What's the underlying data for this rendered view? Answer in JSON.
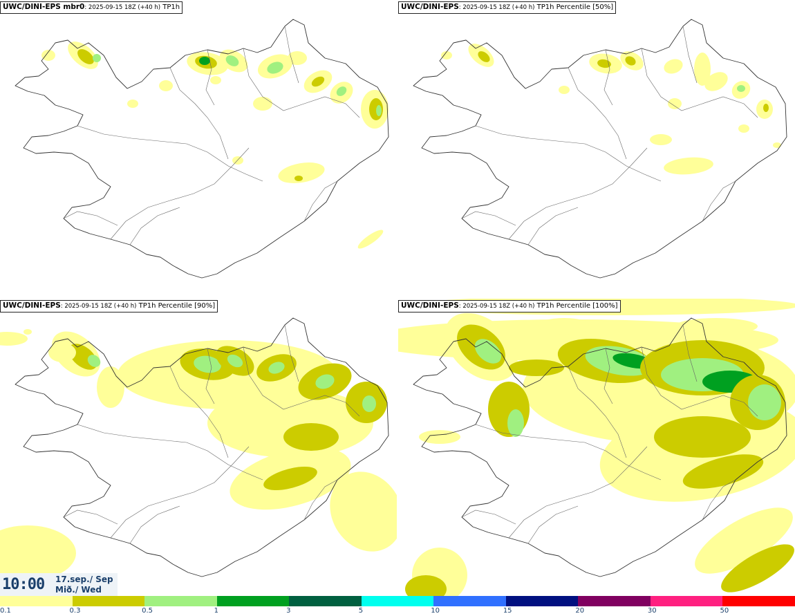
{
  "panels": [
    {
      "src": "UWC/DINI-EPS mbr0",
      "run": ": 2025-09-15 18Z (+40 h)",
      "field": " TP1h"
    },
    {
      "src": "UWC/DINI-EPS",
      "run": ": 2025-09-15 18Z (+40 h)",
      "field": " TP1h Percentile [50%]"
    },
    {
      "src": "UWC/DINI-EPS",
      "run": ": 2025-09-15 18Z (+40 h)",
      "field": " TP1h Percentile [90%]"
    },
    {
      "src": "UWC/DINI-EPS",
      "run": ": 2025-09-15 18Z (+40 h)",
      "field": " TP1h Percentile [100%]"
    }
  ],
  "valid_time": {
    "time": "10:00",
    "date_line1": "17.sep./ Sep",
    "date_line2": "Mið./ Wed"
  },
  "colorbar": {
    "ticks": [
      "0.1",
      "0.3",
      "0.5",
      "1",
      "3",
      "5",
      "10",
      "15",
      "20",
      "30",
      "50"
    ],
    "colors": [
      "#ffff99",
      "#cccc00",
      "#a0f080",
      "#00a020",
      "#006040",
      "#00ffee",
      "#3070ff",
      "#001080",
      "#800060",
      "#ff2080",
      "#ff0000"
    ]
  }
}
